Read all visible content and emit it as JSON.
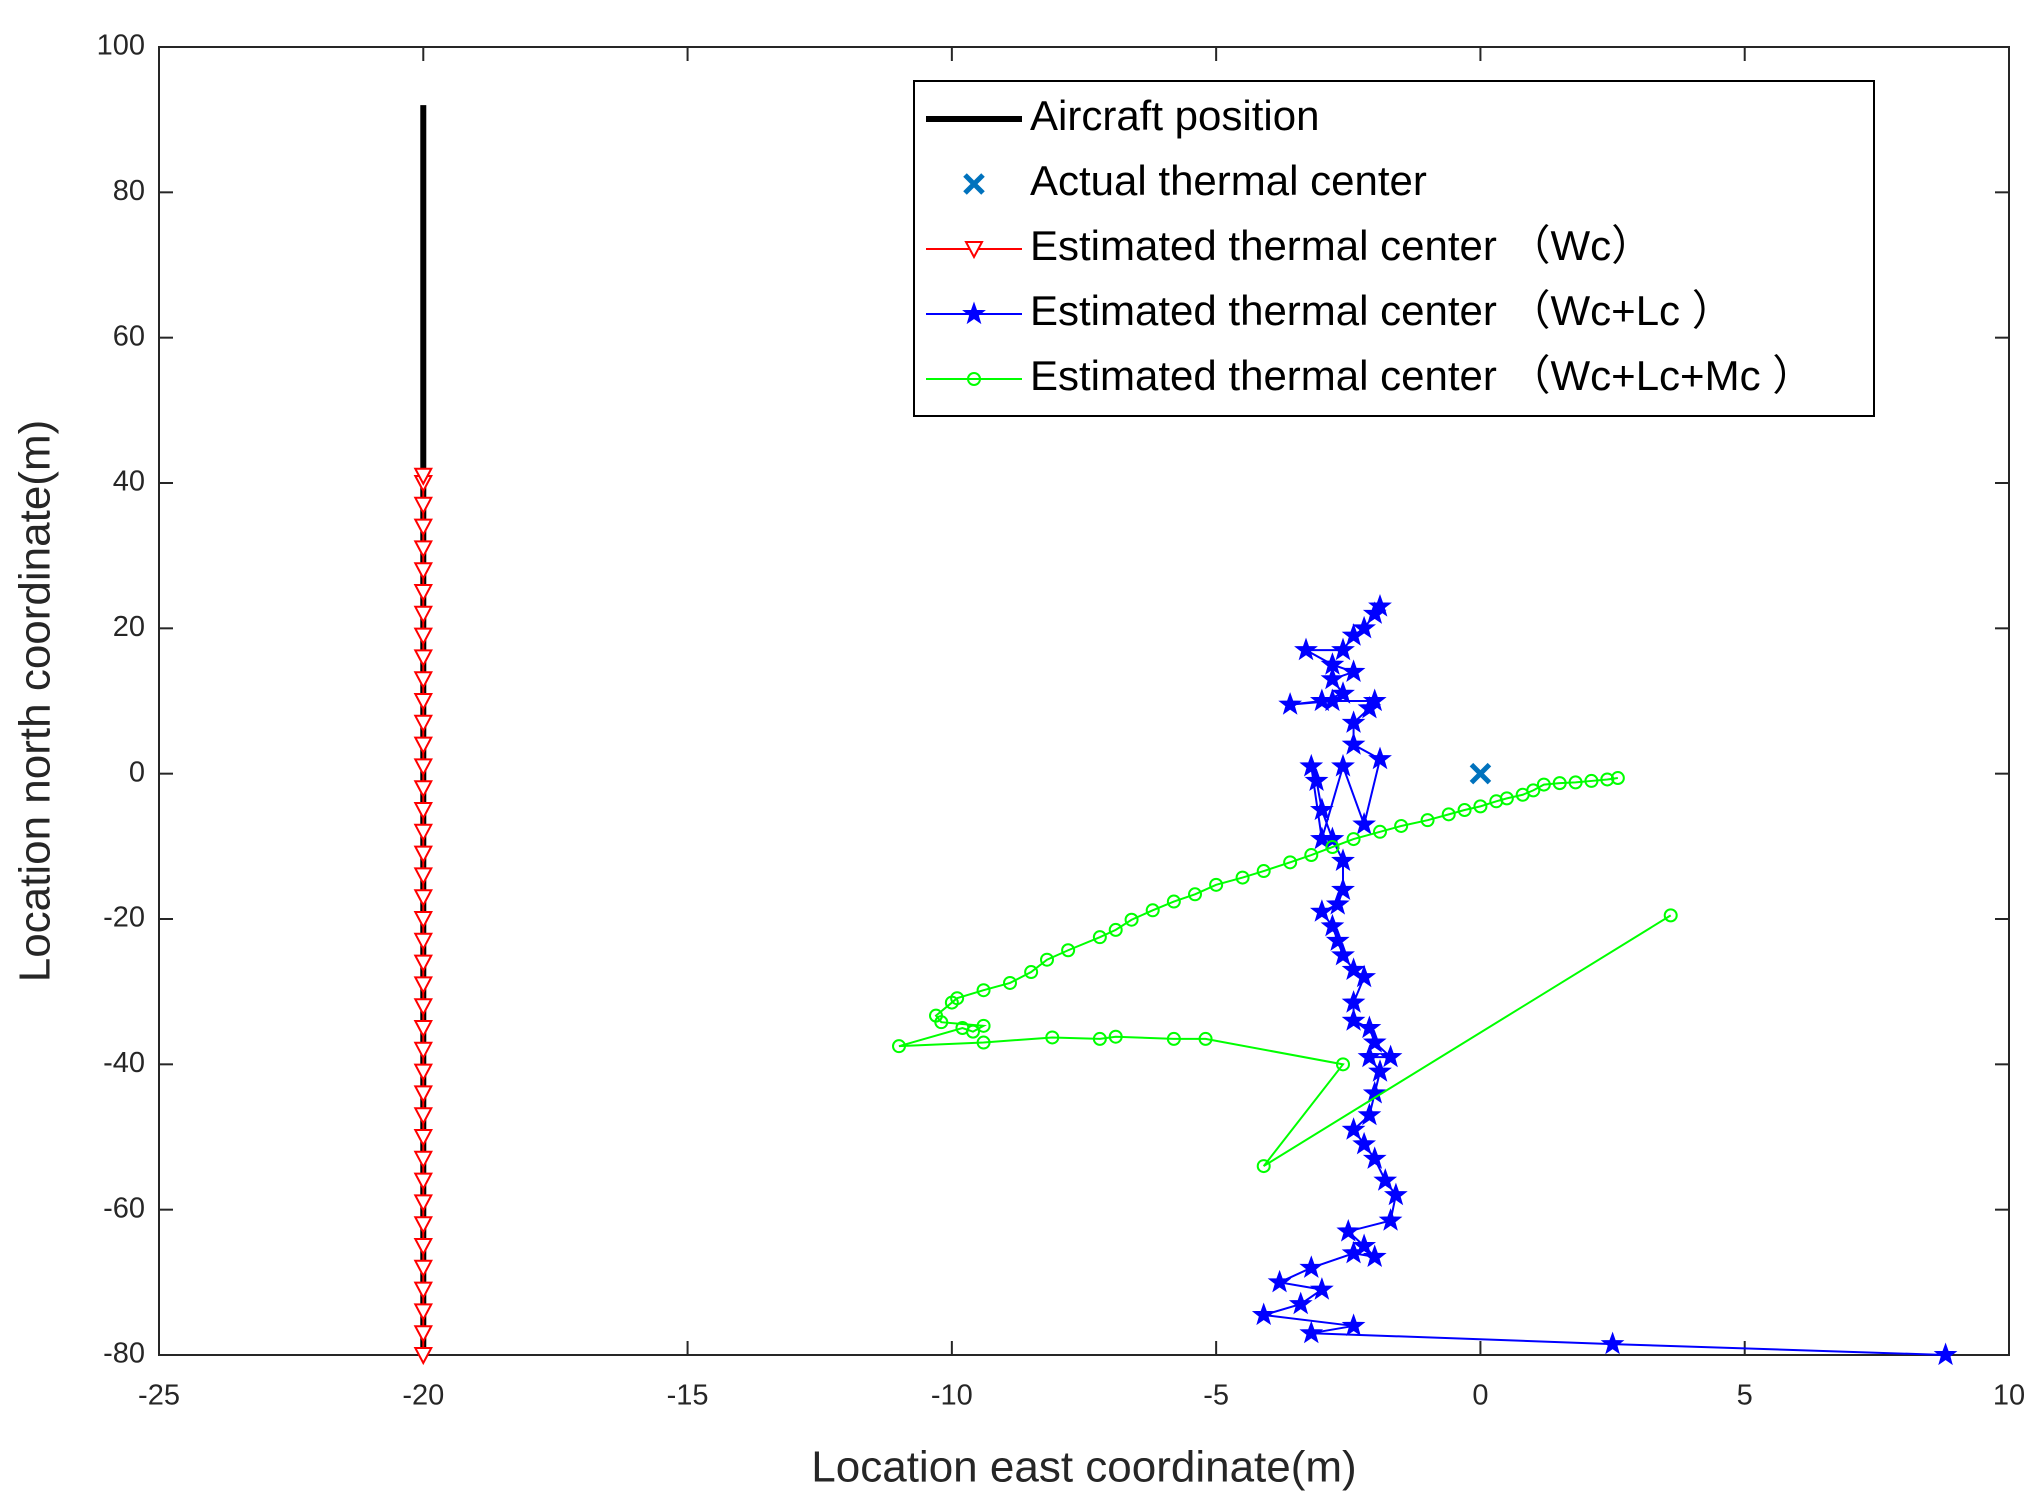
{
  "chart_data": {
    "type": "line",
    "xlabel": "Location east coordinate(m)",
    "ylabel": "Location north coordinate(m)",
    "xlim": [
      -25,
      10
    ],
    "ylim": [
      -80,
      100
    ],
    "xticks": [
      -25,
      -20,
      -15,
      -10,
      -5,
      0,
      5,
      10
    ],
    "yticks": [
      -80,
      -60,
      -40,
      -20,
      0,
      20,
      40,
      60,
      80,
      100
    ],
    "grid": false,
    "legend": "upper right",
    "series": [
      {
        "name": "Aircraft position",
        "color": "#000000",
        "marker": "none",
        "linestyle": "solid",
        "linewidth": 6,
        "x": [
          -20,
          -20
        ],
        "values": [
          -80,
          92
        ]
      },
      {
        "name": "Actual thermal center",
        "color": "#0072bd",
        "marker": "x",
        "linestyle": "none",
        "linewidth": 0,
        "x": [
          0
        ],
        "values": [
          0
        ]
      },
      {
        "name": "Estimated thermal center （Wc）",
        "color": "#ff0000",
        "marker": "triangle-down",
        "linestyle": "solid",
        "linewidth": 2,
        "x": [
          -20,
          -20,
          -20,
          -20,
          -20,
          -20,
          -20,
          -20,
          -20,
          -20,
          -20,
          -20,
          -20,
          -20,
          -20,
          -20,
          -20,
          -20,
          -20,
          -20,
          -20,
          -20,
          -20,
          -20,
          -20,
          -20,
          -20,
          -20,
          -20,
          -20,
          -20,
          -20,
          -20,
          -20,
          -20,
          -20,
          -20,
          -20,
          -20,
          -20,
          -20,
          -20
        ],
        "values": [
          -80,
          -77,
          -74,
          -71,
          -68,
          -65,
          -62,
          -59,
          -56,
          -53,
          -50,
          -47,
          -44,
          -41,
          -38,
          -35,
          -32,
          -29,
          -26,
          -23,
          -20,
          -17,
          -14,
          -11,
          -8,
          -5,
          -2,
          1,
          4,
          7,
          10,
          13,
          16,
          19,
          22,
          25,
          28,
          31,
          34,
          37,
          40,
          41
        ]
      },
      {
        "name": "Estimated thermal center （Wc+Lc ）",
        "color": "#0000ff",
        "marker": "star",
        "linestyle": "solid",
        "linewidth": 2,
        "x": [
          8.8,
          2.5,
          -3.2,
          -2.4,
          -4.1,
          -3.4,
          -3,
          -3.8,
          -3.2,
          -2.4,
          -2,
          -2.2,
          -2.5,
          -1.7,
          -1.6,
          -1.8,
          -2,
          -2.2,
          -2.4,
          -2.1,
          -2,
          -1.9,
          -2.1,
          -1.7,
          -2,
          -2.1,
          -2.4,
          -2.4,
          -2.2,
          -2.4,
          -2.6,
          -2.7,
          -2.8,
          -3,
          -2.7,
          -2.6,
          -2.6,
          -2.8,
          -3,
          -3.1,
          -3.2,
          -3,
          -2.6,
          -2.2,
          -1.9,
          -2.4,
          -2.4,
          -2.1,
          -2,
          -2.8,
          -3.6,
          -3,
          -2.6,
          -2.8,
          -2.4,
          -2.8,
          -3.3,
          -2.6,
          -2.4,
          -2.2,
          -2,
          -1.9
        ],
        "values": [
          -80,
          -78.5,
          -77,
          -76,
          -74.5,
          -73,
          -71,
          -70,
          -68,
          -66,
          -66.5,
          -65,
          -63,
          -61.5,
          -58,
          -56,
          -53,
          -51,
          -49,
          -47,
          -44,
          -41,
          -39,
          -39,
          -37,
          -35,
          -34,
          -31.5,
          -28,
          -27,
          -25,
          -23,
          -21,
          -19,
          -18,
          -16,
          -12,
          -9,
          -5,
          -1,
          1,
          -9,
          1,
          -7,
          2,
          4,
          7,
          9,
          10,
          10,
          9.5,
          10,
          11,
          13,
          14,
          15,
          17,
          17,
          19,
          20,
          22,
          23
        ]
      },
      {
        "name": "Estimated thermal center （Wc+Lc+Mc ）",
        "color": "#00ff00",
        "marker": "circle",
        "linestyle": "solid",
        "linewidth": 2,
        "x": [
          3.6,
          -4.1,
          -2.6,
          -5.2,
          -5.8,
          -6.9,
          -7.2,
          -8.1,
          -9.4,
          -11,
          -9.8,
          -9.6,
          -9.4,
          -10.2,
          -10.3,
          -10,
          -9.9,
          -9.4,
          -8.9,
          -8.5,
          -8.2,
          -7.8,
          -7.2,
          -6.9,
          -6.6,
          -6.2,
          -5.8,
          -5.4,
          -5,
          -4.5,
          -4.1,
          -3.6,
          -3.2,
          -2.8,
          -2.4,
          -1.9,
          -1.5,
          -1,
          -0.6,
          -0.3,
          0,
          0.3,
          0.5,
          0.8,
          1,
          1.2,
          1.5,
          1.8,
          2.1,
          2.4,
          2.6
        ],
        "values": [
          -19.5,
          -54,
          -40,
          -36.5,
          -36.5,
          -36.2,
          -36.5,
          -36.3,
          -37,
          -37.5,
          -35,
          -35.5,
          -34.7,
          -34.2,
          -33.3,
          -31.5,
          -30.9,
          -29.8,
          -28.8,
          -27.3,
          -25.6,
          -24.3,
          -22.5,
          -21.5,
          -20.1,
          -18.8,
          -17.6,
          -16.6,
          -15.3,
          -14.3,
          -13.4,
          -12.2,
          -11.2,
          -10.1,
          -9,
          -8,
          -7.2,
          -6.4,
          -5.6,
          -5,
          -4.5,
          -3.8,
          -3.4,
          -2.9,
          -2.3,
          -1.5,
          -1.3,
          -1.2,
          -1,
          -0.8,
          -0.6
        ]
      }
    ]
  }
}
